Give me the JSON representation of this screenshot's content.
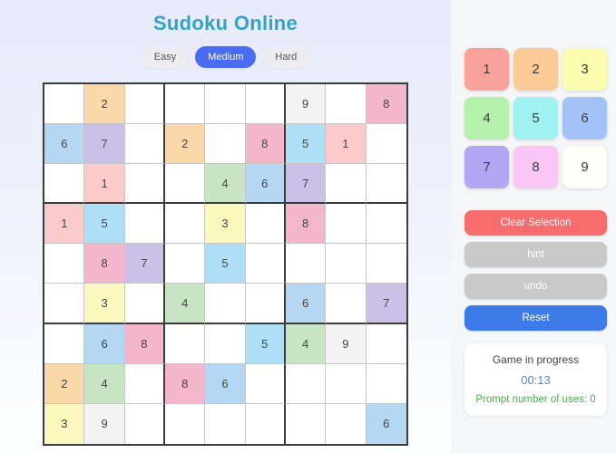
{
  "header": {
    "title": "Sudoku Online",
    "title_color": "#32a3c8"
  },
  "difficulty": {
    "active_color": "#4a6cf0",
    "options": [
      {
        "label": "Easy",
        "active": false
      },
      {
        "label": "Medium",
        "active": true
      },
      {
        "label": "Hard",
        "active": false
      }
    ]
  },
  "grid": {
    "rows": [
      [
        "",
        "2",
        "",
        "",
        "",
        "",
        "9",
        "",
        "8"
      ],
      [
        "6",
        "7",
        "",
        "2",
        "",
        "8",
        "5",
        "1",
        ""
      ],
      [
        "",
        "1",
        "",
        "",
        "4",
        "6",
        "7",
        "",
        ""
      ],
      [
        "1",
        "5",
        "",
        "",
        "3",
        "",
        "8",
        "",
        ""
      ],
      [
        "",
        "8",
        "7",
        "",
        "5",
        "",
        "",
        "",
        ""
      ],
      [
        "",
        "3",
        "",
        "4",
        "",
        "",
        "6",
        "",
        "7"
      ],
      [
        "",
        "6",
        "8",
        "",
        "",
        "5",
        "4",
        "9",
        ""
      ],
      [
        "2",
        "4",
        "",
        "8",
        "6",
        "",
        "",
        "",
        ""
      ],
      [
        "3",
        "9",
        "",
        "",
        "",
        "",
        "",
        "",
        "6"
      ]
    ],
    "cell_colors": {
      "1": "#fbcaca",
      "2": "#fad8a9",
      "3": "#faf8be",
      "4": "#c7e5c2",
      "5": "#aedff6",
      "6": "#b6d7f2",
      "7": "#cbc0e6",
      "8": "#f3b6cb",
      "9": "#f3f3f3"
    }
  },
  "numpad": {
    "buttons": [
      {
        "label": "1",
        "color": "#f9a29b"
      },
      {
        "label": "2",
        "color": "#fbcb97"
      },
      {
        "label": "3",
        "color": "#fcfcae"
      },
      {
        "label": "4",
        "color": "#b4f2ab"
      },
      {
        "label": "5",
        "color": "#a0f1f1"
      },
      {
        "label": "6",
        "color": "#a3c2f6"
      },
      {
        "label": "7",
        "color": "#b3a6f2"
      },
      {
        "label": "8",
        "color": "#f9c6f5"
      },
      {
        "label": "9",
        "color": "#fefef8"
      }
    ]
  },
  "actions": [
    {
      "name": "clear-selection-button",
      "label": "Clear Selection",
      "color": "#f76c6c"
    },
    {
      "name": "hint-button",
      "label": "hint",
      "color": "#c9c9c9"
    },
    {
      "name": "undo-button",
      "label": "undo",
      "color": "#c9c9c9"
    },
    {
      "name": "reset-button",
      "label": "Reset",
      "color": "#3d7be8"
    }
  ],
  "status": {
    "title": "Game in progress",
    "timer": "00:13",
    "timer_color": "#5b7de8",
    "prompt_uses": "Prompt number of uses: 0",
    "prompt_color": "#4caf50"
  }
}
